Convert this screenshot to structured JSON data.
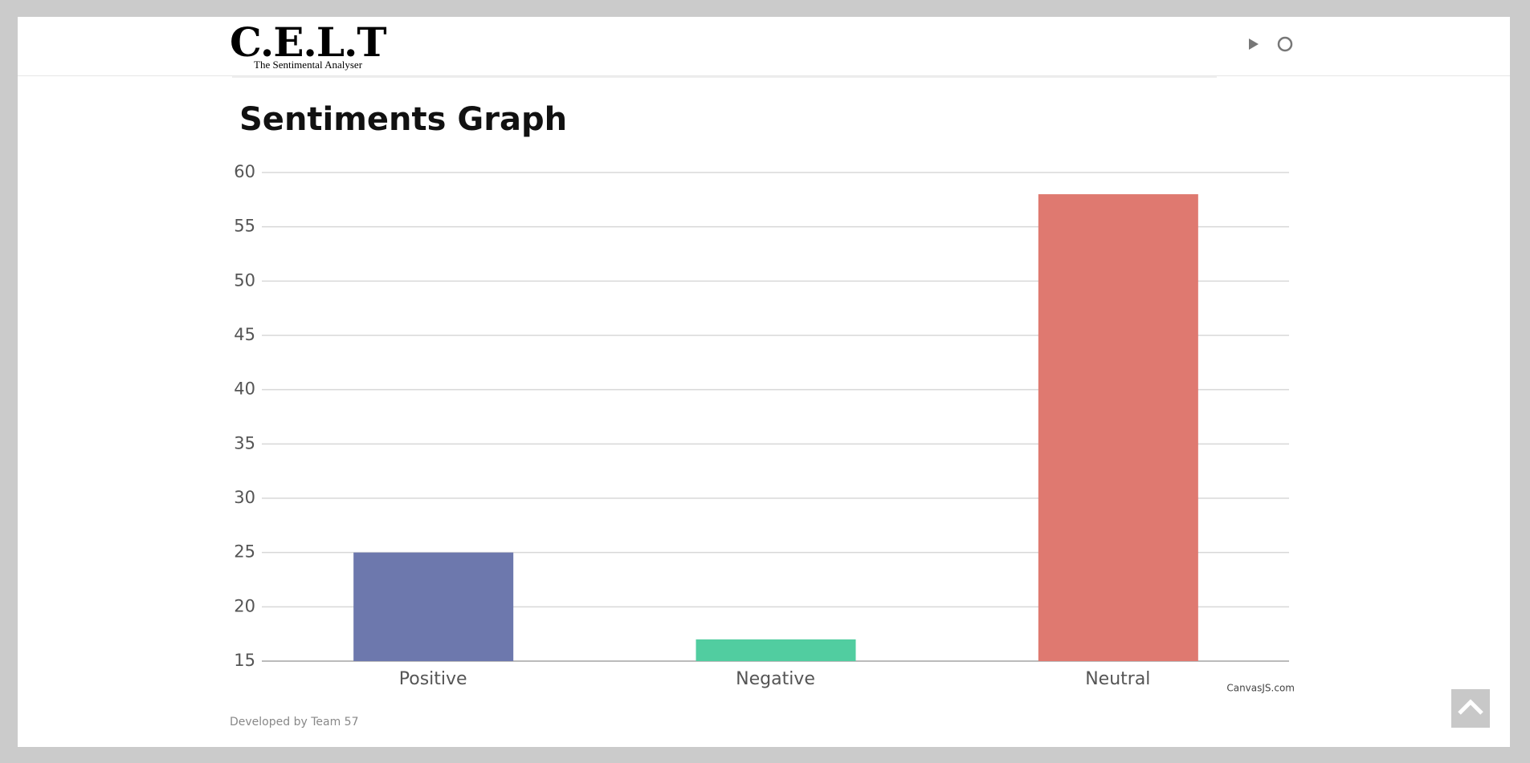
{
  "header": {
    "logo": "C.E.L.T",
    "tagline": "The Sentimental Analyser"
  },
  "chart_data": {
    "type": "bar",
    "title": "Sentiments Graph",
    "categories": [
      "Positive",
      "Negative",
      "Neutral"
    ],
    "values": [
      25,
      17,
      58
    ],
    "colors": [
      "#6d78ad",
      "#51cda0",
      "#df7970"
    ],
    "ylim": [
      15,
      60
    ],
    "yticks": [
      15,
      20,
      25,
      30,
      35,
      40,
      45,
      50,
      55,
      60
    ],
    "grid": true,
    "credit": "CanvasJS.com"
  },
  "footer": {
    "text": "Developed by Team 57"
  }
}
